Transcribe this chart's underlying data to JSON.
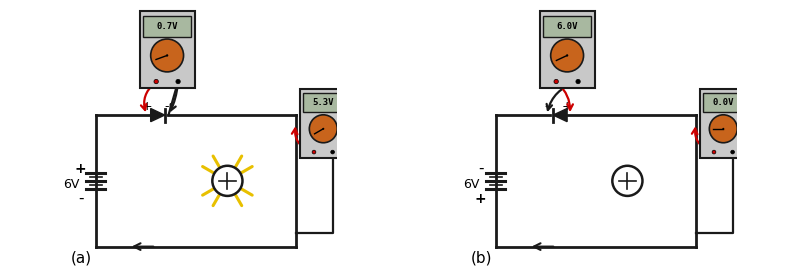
{
  "fig_width": 8.0,
  "fig_height": 2.74,
  "dpi": 100,
  "bg_color": "#ffffff",
  "label_a": "(a)",
  "label_b": "(b)",
  "circuit_a": {
    "battery_label": "6V",
    "battery_plus": "+",
    "battery_minus": "-",
    "meter1_value": "0.7V",
    "meter2_value": "5.3V",
    "diode_forward": true,
    "led_on": true,
    "diode_plus": "+",
    "diode_minus": "-"
  },
  "circuit_b": {
    "battery_label": "6V",
    "battery_minus": "-",
    "battery_plus": "+",
    "meter1_value": "6.0V",
    "meter2_value": "0.0V",
    "diode_forward": false,
    "led_on": false,
    "diode_minus": "-",
    "diode_plus": "+"
  },
  "colors": {
    "black": "#000000",
    "dark": "#1a1a1a",
    "red": "#cc0000",
    "orange_meter": "#c8641c",
    "meter_body": "#c8c8c8",
    "meter_display": "#a8b8a0",
    "yellow_ray": "#e8c000",
    "wire_lw": 2.0
  }
}
